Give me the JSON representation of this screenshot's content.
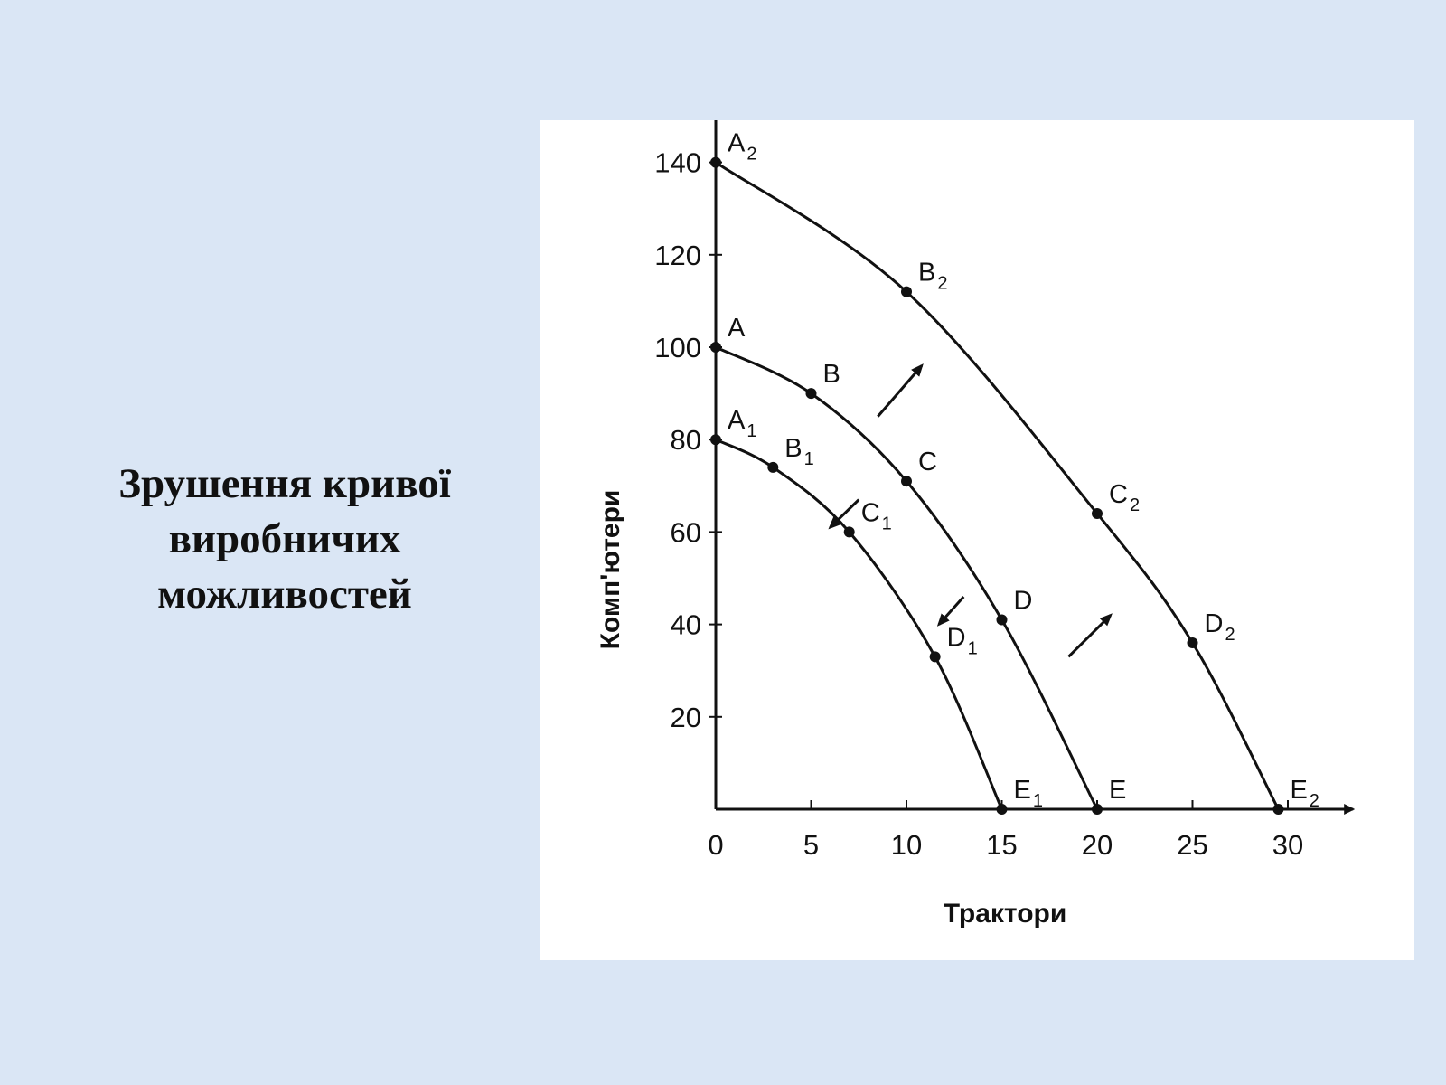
{
  "slide": {
    "title_lines": [
      "Зрушення кривої",
      "виробничих",
      "можливостей"
    ]
  },
  "chart_data": {
    "type": "line",
    "xlabel": "Трактори",
    "ylabel": "Комп'ютери",
    "xlim": [
      0,
      32
    ],
    "ylim": [
      0,
      150
    ],
    "x_ticks": [
      0,
      5,
      10,
      15,
      20,
      25,
      30
    ],
    "x_tick_labels": [
      "0",
      "5",
      "10",
      "15",
      "20",
      "25",
      "30"
    ],
    "y_ticks": [
      20,
      40,
      60,
      80,
      100,
      120,
      140
    ],
    "y_tick_labels": [
      "20",
      "40",
      "60",
      "80",
      "100",
      "120",
      "140"
    ],
    "grid": false,
    "legend": "none",
    "series": [
      {
        "points": [
          {
            "label": "A",
            "sub": "1",
            "x": 0,
            "y": 80
          },
          {
            "label": "B",
            "sub": "1",
            "x": 3,
            "y": 74
          },
          {
            "label": "C",
            "sub": "1",
            "x": 7,
            "y": 60
          },
          {
            "label": "D",
            "sub": "1",
            "x": 11.5,
            "y": 33
          },
          {
            "label": "E",
            "sub": "1",
            "x": 15,
            "y": 0
          }
        ]
      },
      {
        "points": [
          {
            "label": "A",
            "sub": "",
            "x": 0,
            "y": 100
          },
          {
            "label": "B",
            "sub": "",
            "x": 5,
            "y": 90
          },
          {
            "label": "C",
            "sub": "",
            "x": 10,
            "y": 71
          },
          {
            "label": "D",
            "sub": "",
            "x": 15,
            "y": 41
          },
          {
            "label": "E",
            "sub": "",
            "x": 20,
            "y": 0
          }
        ]
      },
      {
        "points": [
          {
            "label": "A",
            "sub": "2",
            "x": 0,
            "y": 140
          },
          {
            "label": "B",
            "sub": "2",
            "x": 10,
            "y": 112
          },
          {
            "label": "C",
            "sub": "2",
            "x": 20,
            "y": 64
          },
          {
            "label": "D",
            "sub": "2",
            "x": 25,
            "y": 36
          },
          {
            "label": "E",
            "sub": "2",
            "x": 29.5,
            "y": 0
          }
        ]
      }
    ],
    "arrows": [
      {
        "direction": "outward",
        "from": [
          8.5,
          85
        ],
        "to": [
          10.8,
          96
        ]
      },
      {
        "direction": "outward",
        "from": [
          18.5,
          33
        ],
        "to": [
          20.7,
          42
        ]
      },
      {
        "direction": "inward",
        "from": [
          7.5,
          67
        ],
        "to": [
          6.0,
          61
        ]
      },
      {
        "direction": "inward",
        "from": [
          13.0,
          46
        ],
        "to": [
          11.7,
          40
        ]
      }
    ]
  }
}
